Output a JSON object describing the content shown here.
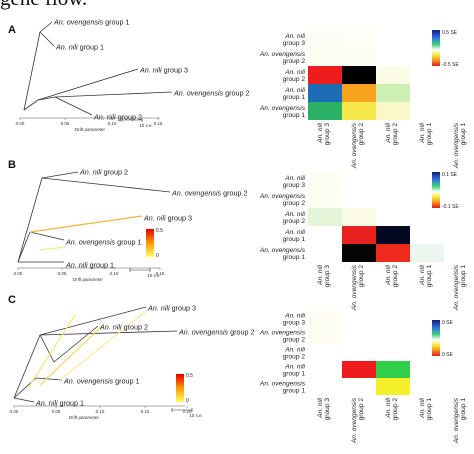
{
  "header_fragment": "gene flow.",
  "panels": [
    {
      "letter": "A",
      "tree": {
        "xlabel": "Drift parameter",
        "ticks": [
          "0.00",
          "0.05",
          "0.10",
          "0.15"
        ],
        "scale_bar": "10 s.e.",
        "leaves": [
          {
            "species": "An. ovengensis",
            "group": "group 1"
          },
          {
            "species": "An. nili",
            "group": "group 1"
          },
          {
            "species": "An. nili",
            "group": "group 3"
          },
          {
            "species": "An. ovengensis",
            "group": "group 2"
          },
          {
            "species": "An. nili",
            "group": "group 2"
          }
        ],
        "migration_edges": [],
        "migration_legend": null
      },
      "heatmap": {
        "legend_max": "0.5 SE",
        "legend_min": "-0.5 SE",
        "rows": [
          {
            "species": "An. nili",
            "group": "group 3"
          },
          {
            "species": "An. ovengensis",
            "group": "group 2"
          },
          {
            "species": "An. nili",
            "group": "group 2"
          },
          {
            "species": "An. nili",
            "group": "group 1"
          },
          {
            "species": "An. ovengensis",
            "group": "group 1"
          }
        ],
        "cols": [
          {
            "species": "An. nili",
            "group": "group 3"
          },
          {
            "species": "An. ovengensis",
            "group": "group 2"
          },
          {
            "species": "An. nili",
            "group": "group 2"
          },
          {
            "species": "An. nili",
            "group": "group 1"
          },
          {
            "species": "An. ovengensis",
            "group": "group 1"
          }
        ],
        "cells": [
          {
            "row": 2,
            "col": 0,
            "color": "#ee1c1c"
          },
          {
            "row": 2,
            "col": 1,
            "color": "#000000"
          },
          {
            "row": 2,
            "col": 2,
            "color": "#fcfbe6"
          },
          {
            "row": 3,
            "col": 0,
            "color": "#1d6db5"
          },
          {
            "row": 3,
            "col": 1,
            "color": "#f7a21d"
          },
          {
            "row": 3,
            "col": 2,
            "color": "#cdf0b4"
          },
          {
            "row": 4,
            "col": 0,
            "color": "#2bb267"
          },
          {
            "row": 4,
            "col": 1,
            "color": "#f6e84a"
          },
          {
            "row": 4,
            "col": 2,
            "color": "#fbf7c8"
          },
          {
            "row": 0,
            "col": 0,
            "color": "#fdfdf3"
          },
          {
            "row": 1,
            "col": 0,
            "color": "#fdfdf2"
          },
          {
            "row": 1,
            "col": 1,
            "color": "#fdfdf3"
          },
          {
            "row": 0,
            "col": 1,
            "color": "#fefef6"
          }
        ]
      }
    },
    {
      "letter": "B",
      "tree": {
        "xlabel": "Drift parameter",
        "ticks": [
          "0.00",
          "0.05",
          "0.10",
          "0.15"
        ],
        "scale_bar": "10 s.e.",
        "leaves": [
          {
            "species": "An. nili",
            "group": "group 2"
          },
          {
            "species": "An. ovengensis",
            "group": "group 2"
          },
          {
            "species": "An. nili",
            "group": "group 3"
          },
          {
            "species": "An. ovengensis",
            "group": "group 1"
          },
          {
            "species": "An. nili",
            "group": "group 1"
          }
        ],
        "migration_edges": [
          {
            "color": "#f5b841",
            "weight": 0.35
          },
          {
            "color": "#fbe49a",
            "weight": 0.12
          }
        ],
        "migration_legend": {
          "max": "0.5",
          "min": "0"
        }
      },
      "heatmap": {
        "legend_max": "0.1 SE",
        "legend_min": "-0.1 SE",
        "rows": [
          {
            "species": "An. nili",
            "group": "group 3"
          },
          {
            "species": "An. ovengensis",
            "group": "group 2"
          },
          {
            "species": "An. nili",
            "group": "group 2"
          },
          {
            "species": "An. nili",
            "group": "group 1"
          },
          {
            "species": "An. ovengensis",
            "group": "group 1"
          }
        ],
        "cols": [
          {
            "species": "An. nili",
            "group": "group 3"
          },
          {
            "species": "An. ovengensis",
            "group": "group 2"
          },
          {
            "species": "An. nili",
            "group": "group 2"
          },
          {
            "species": "An. nili",
            "group": "group 1"
          },
          {
            "species": "An. ovengensis",
            "group": "group 1"
          }
        ],
        "cells": [
          {
            "row": 2,
            "col": 0,
            "color": "#e4f5d8"
          },
          {
            "row": 2,
            "col": 1,
            "color": "#fbfbe8"
          },
          {
            "row": 3,
            "col": 1,
            "color": "#e8201f"
          },
          {
            "row": 3,
            "col": 2,
            "color": "#040820"
          },
          {
            "row": 4,
            "col": 1,
            "color": "#050505"
          },
          {
            "row": 4,
            "col": 2,
            "color": "#ee2a1c"
          },
          {
            "row": 4,
            "col": 3,
            "color": "#eaf6ef"
          },
          {
            "row": 0,
            "col": 0,
            "color": "#fdfdf3"
          },
          {
            "row": 1,
            "col": 0,
            "color": "#fdfdf2"
          }
        ]
      }
    },
    {
      "letter": "C",
      "tree": {
        "xlabel": "Drift parameter",
        "ticks": [
          "0.00",
          "0.05",
          "0.10",
          "0.15",
          "0.20"
        ],
        "scale_bar": "10 s.e.",
        "leaves": [
          {
            "species": "An. nili",
            "group": "group 3"
          },
          {
            "species": "An. ovengensis",
            "group": "group 2"
          },
          {
            "species": "An. nili",
            "group": "group 2"
          },
          {
            "species": "An. ovengensis",
            "group": "group 1"
          },
          {
            "species": "An. nili",
            "group": "group 1"
          }
        ],
        "migration_edges": [
          {
            "color": "#fbd55a",
            "weight": 0.3
          },
          {
            "color": "#fbe27e",
            "weight": 0.25
          },
          {
            "color": "#fce89b",
            "weight": 0.2
          }
        ],
        "migration_legend": {
          "max": "0.5",
          "min": "0"
        }
      },
      "heatmap": {
        "legend_max": "0 SE",
        "legend_min": "0 SE",
        "rows": [
          {
            "species": "An. nili",
            "group": "group 3"
          },
          {
            "species": "An. ovengensis",
            "group": "group 2"
          },
          {
            "species": "An. nili",
            "group": "group 2"
          },
          {
            "species": "An. nili",
            "group": "group 1"
          },
          {
            "species": "An. ovengensis",
            "group": "group 1"
          }
        ],
        "cols": [
          {
            "species": "An. nili",
            "group": "group 3"
          },
          {
            "species": "An. ovengensis",
            "group": "group 2"
          },
          {
            "species": "An. nili",
            "group": "group 2"
          },
          {
            "species": "An. nili",
            "group": "group 1"
          },
          {
            "species": "An. ovengensis",
            "group": "group 1"
          }
        ],
        "cells": [
          {
            "row": 3,
            "col": 1,
            "color": "#ef1a1c"
          },
          {
            "row": 3,
            "col": 2,
            "color": "#2fd047"
          },
          {
            "row": 4,
            "col": 2,
            "color": "#f5ef2c"
          },
          {
            "row": 0,
            "col": 0,
            "color": "#fdfdf3"
          },
          {
            "row": 1,
            "col": 0,
            "color": "#fdfdf2"
          }
        ]
      }
    }
  ],
  "chart_data": [
    {
      "type": "heatmap",
      "panel": "A",
      "description_rows": [
        "An. nili group 3",
        "An. ovengensis group 2",
        "An. nili group 2",
        "An. nili group 1",
        "An. ovengensis group 1"
      ],
      "columns": [
        "An. nili group 3",
        "An. ovengensis group 2",
        "An. nili group 2",
        "An. nili group 1",
        "An. ovengensis group 1"
      ],
      "color_scale": {
        "max": "0.5 SE",
        "min": "-0.5 SE"
      }
    },
    {
      "type": "heatmap",
      "panel": "B",
      "description_rows": [
        "An. nili group 3",
        "An. ovengensis group 2",
        "An. nili group 2",
        "An. nili group 1",
        "An. ovengensis group 1"
      ],
      "columns": [
        "An. nili group 3",
        "An. ovengensis group 2",
        "An. nili group 2",
        "An. nili group 1",
        "An. ovengensis group 1"
      ],
      "color_scale": {
        "max": "0.1 SE",
        "min": "-0.1 SE"
      }
    },
    {
      "type": "heatmap",
      "panel": "C",
      "description_rows": [
        "An. nili group 3",
        "An. ovengensis group 2",
        "An. nili group 2",
        "An. nili group 1",
        "An. ovengensis group 1"
      ],
      "columns": [
        "An. nili group 3",
        "An. ovengensis group 2",
        "An. nili group 2",
        "An. nili group 1",
        "An. ovengensis group 1"
      ],
      "color_scale": {
        "max": "0 SE",
        "min": "0 SE"
      }
    }
  ]
}
